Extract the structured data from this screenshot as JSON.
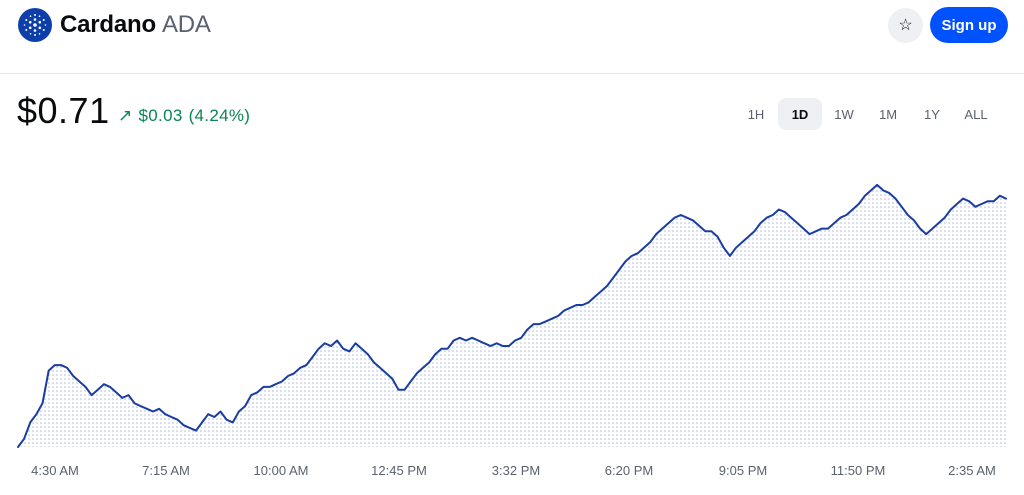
{
  "header": {
    "name": "Cardano",
    "symbol": "ADA",
    "signup_label": "Sign up",
    "watchlist_icon": "star-icon",
    "logo_icon": "cardano-logo-icon"
  },
  "price": {
    "value": "$0.71",
    "change_arrow": "↗",
    "change_value": "$0.03",
    "change_percent": "(4.24%)",
    "change_color": "#098551"
  },
  "ranges": {
    "options": [
      "1H",
      "1D",
      "1W",
      "1M",
      "1Y",
      "ALL"
    ],
    "selected": "1D"
  },
  "colors": {
    "line": "#1a3d9f",
    "fill": "#a8b4d8",
    "brand": "#0052ff"
  },
  "chart_data": {
    "type": "area",
    "x_ticks": [
      "4:30 AM",
      "7:15 AM",
      "10:00 AM",
      "12:45 PM",
      "3:32 PM",
      "6:20 PM",
      "9:05 PM",
      "11:50 PM",
      "2:35 AM"
    ],
    "series": [
      {
        "values": [
          0.0,
          0.03,
          0.09,
          0.12,
          0.16,
          0.28,
          0.3,
          0.3,
          0.29,
          0.26,
          0.24,
          0.22,
          0.19,
          0.21,
          0.23,
          0.22,
          0.2,
          0.18,
          0.19,
          0.16,
          0.15,
          0.14,
          0.13,
          0.14,
          0.12,
          0.11,
          0.1,
          0.08,
          0.07,
          0.06,
          0.09,
          0.12,
          0.11,
          0.13,
          0.1,
          0.09,
          0.13,
          0.15,
          0.19,
          0.2,
          0.22,
          0.22,
          0.23,
          0.24,
          0.26,
          0.27,
          0.29,
          0.3,
          0.33,
          0.36,
          0.38,
          0.37,
          0.39,
          0.36,
          0.35,
          0.38,
          0.36,
          0.34,
          0.31,
          0.29,
          0.27,
          0.25,
          0.21,
          0.21,
          0.24,
          0.27,
          0.29,
          0.31,
          0.34,
          0.36,
          0.36,
          0.39,
          0.4,
          0.39,
          0.4,
          0.39,
          0.38,
          0.37,
          0.38,
          0.37,
          0.37,
          0.39,
          0.4,
          0.43,
          0.45,
          0.45,
          0.46,
          0.47,
          0.48,
          0.5,
          0.51,
          0.52,
          0.52,
          0.53,
          0.55,
          0.57,
          0.59,
          0.62,
          0.65,
          0.68,
          0.7,
          0.71,
          0.73,
          0.75,
          0.78,
          0.8,
          0.82,
          0.84,
          0.85,
          0.84,
          0.83,
          0.81,
          0.79,
          0.79,
          0.77,
          0.73,
          0.7,
          0.73,
          0.75,
          0.77,
          0.79,
          0.82,
          0.84,
          0.85,
          0.87,
          0.86,
          0.84,
          0.82,
          0.8,
          0.78,
          0.79,
          0.8,
          0.8,
          0.82,
          0.84,
          0.85,
          0.87,
          0.89,
          0.92,
          0.94,
          0.96,
          0.94,
          0.93,
          0.91,
          0.88,
          0.85,
          0.83,
          0.8,
          0.78,
          0.8,
          0.82,
          0.84,
          0.87,
          0.89,
          0.91,
          0.9,
          0.88,
          0.89,
          0.9,
          0.9,
          0.92,
          0.91
        ]
      }
    ]
  }
}
